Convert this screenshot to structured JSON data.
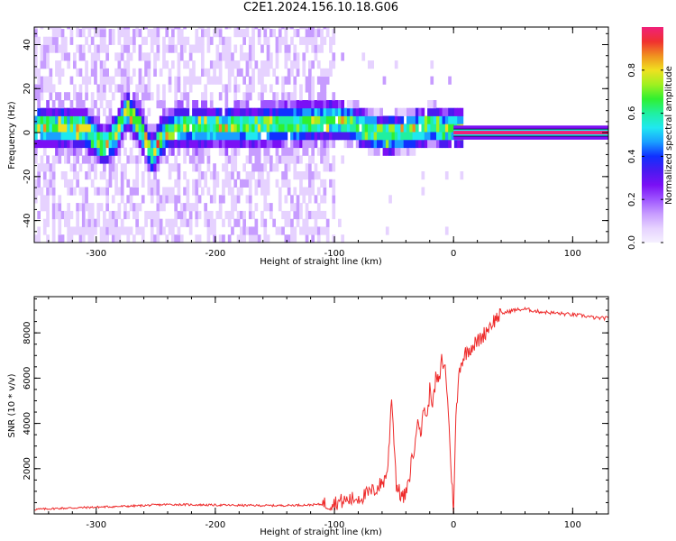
{
  "figure": {
    "title": "C2E1.2024.156.10.18.G06"
  },
  "colors": {
    "snr_line": "#ee2a2a",
    "axes": "#000000",
    "colormap": [
      "#f5f0ff",
      "#e6d2ff",
      "#c79cff",
      "#9e55ff",
      "#7a10f5",
      "#4a1af0",
      "#1030ff",
      "#1aa0ff",
      "#20e8f0",
      "#20f0a0",
      "#30f030",
      "#a0f020",
      "#f0e020",
      "#f09020",
      "#f03030",
      "#f0207a"
    ]
  },
  "chart_data": [
    {
      "type": "heatmap",
      "title": "C2E1.2024.156.10.18.G06",
      "xlabel": "Height of straight line (km)",
      "ylabel": "Frequency (Hz)",
      "xlim": [
        -352,
        130
      ],
      "ylim": [
        -50,
        48
      ],
      "xticks": [
        -300,
        -200,
        -100,
        0,
        100
      ],
      "xtick_labels": [
        "-300",
        "-200",
        "-100",
        "0",
        "100"
      ],
      "yticks": [
        -40,
        -20,
        0,
        20,
        40
      ],
      "ytick_labels": [
        "-40",
        "-20",
        "0",
        "20",
        "40"
      ],
      "colorbar": {
        "label": "Normalized spectral amplitude",
        "range": [
          0,
          1
        ],
        "ticks": [
          0.0,
          0.2,
          0.4,
          0.6,
          0.8
        ],
        "tick_labels": [
          "0.0",
          "0.2",
          "0.4",
          "0.6",
          "0.8"
        ]
      },
      "ridge_center_hz": [
        [
          -352,
          1
        ],
        [
          -330,
          1
        ],
        [
          -310,
          0
        ],
        [
          -295,
          -8
        ],
        [
          -285,
          -3
        ],
        [
          -275,
          9
        ],
        [
          -265,
          2
        ],
        [
          -255,
          -12
        ],
        [
          -245,
          -3
        ],
        [
          -230,
          1
        ],
        [
          -200,
          1
        ],
        [
          -170,
          1
        ],
        [
          -140,
          2
        ],
        [
          -120,
          3
        ],
        [
          -100,
          4
        ],
        [
          -85,
          2
        ],
        [
          -70,
          -1
        ],
        [
          -58,
          -3
        ],
        [
          -45,
          -2
        ],
        [
          -30,
          0
        ],
        [
          -18,
          2
        ],
        [
          -10,
          0
        ],
        [
          0,
          0
        ],
        [
          130,
          0
        ]
      ],
      "strong_signal_band": {
        "x_start": 0,
        "x_end": 130,
        "frequency_hz": 0,
        "amplitude": 1.0
      }
    },
    {
      "type": "line",
      "xlabel": "Height of straight line (km)",
      "ylabel": "SNR (10 * v/v)",
      "xlim": [
        -352,
        130
      ],
      "ylim": [
        0,
        9600
      ],
      "xticks": [
        -300,
        -200,
        -100,
        0,
        100
      ],
      "xtick_labels": [
        "-300",
        "-200",
        "-100",
        "0",
        "100"
      ],
      "yticks": [
        2000,
        4000,
        6000,
        8000
      ],
      "ytick_labels": [
        "2000",
        "4000",
        "6000",
        "8000"
      ],
      "series": [
        {
          "x": [
            -352,
            -330,
            -300,
            -270,
            -240,
            -210,
            -180,
            -150,
            -120,
            -105,
            -95,
            -85,
            -75,
            -65,
            -58,
            -55,
            -52,
            -48,
            -45,
            -42,
            -38,
            -35,
            -32,
            -30,
            -27,
            -25,
            -22,
            -20,
            -17,
            -15,
            -12,
            -10,
            -7,
            -5,
            -3,
            -1,
            0,
            2,
            5,
            10,
            15,
            20,
            25,
            30,
            35,
            40,
            50,
            60,
            70,
            80,
            90,
            100,
            110,
            120,
            130
          ],
          "y": [
            200,
            250,
            300,
            350,
            420,
            400,
            380,
            370,
            400,
            450,
            550,
            650,
            800,
            1100,
            1500,
            2100,
            5300,
            1300,
            900,
            700,
            1200,
            2500,
            3000,
            4500,
            3500,
            4800,
            4200,
            5500,
            4900,
            6000,
            5800,
            6800,
            6400,
            5200,
            3000,
            1000,
            300,
            4200,
            6500,
            7100,
            7400,
            7600,
            7900,
            8300,
            8600,
            8850,
            9000,
            9050,
            8950,
            8900,
            8850,
            8800,
            8750,
            8650,
            8650
          ]
        }
      ]
    }
  ]
}
